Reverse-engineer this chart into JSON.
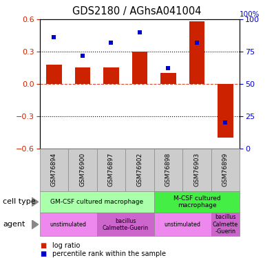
{
  "title": "GDS2180 / AGhsA041004",
  "samples": [
    "GSM76894",
    "GSM76900",
    "GSM76897",
    "GSM76902",
    "GSM76898",
    "GSM76903",
    "GSM76899"
  ],
  "log_ratio": [
    0.18,
    0.15,
    0.15,
    0.3,
    0.1,
    0.58,
    -0.5
  ],
  "percentile": [
    86,
    72,
    82,
    90,
    62,
    82,
    20
  ],
  "ylim_left": [
    -0.6,
    0.6
  ],
  "ylim_right": [
    0,
    100
  ],
  "yticks_left": [
    -0.6,
    -0.3,
    0.0,
    0.3,
    0.6
  ],
  "yticks_right": [
    0,
    25,
    50,
    75,
    100
  ],
  "bar_color": "#cc2200",
  "dot_color": "#0000cc",
  "cell_type_groups": [
    {
      "label": "GM-CSF cultured macrophage",
      "start": 0,
      "end": 4,
      "color": "#aaffaa"
    },
    {
      "label": "M-CSF cultured\nmacrophage",
      "start": 4,
      "end": 7,
      "color": "#44ee44"
    }
  ],
  "agent_groups": [
    {
      "label": "unstimulated",
      "start": 0,
      "end": 2,
      "color": "#ee88ee"
    },
    {
      "label": "bacillus\nCalmette-Guerin",
      "start": 2,
      "end": 4,
      "color": "#cc66cc"
    },
    {
      "label": "unstimulated",
      "start": 4,
      "end": 6,
      "color": "#ee88ee"
    },
    {
      "label": "bacillus\nCalmette\n-Guerin",
      "start": 6,
      "end": 7,
      "color": "#cc66cc"
    }
  ],
  "cell_type_label": "cell type",
  "agent_label": "agent",
  "legend_bar_label": "log ratio",
  "legend_dot_label": "percentile rank within the sample"
}
